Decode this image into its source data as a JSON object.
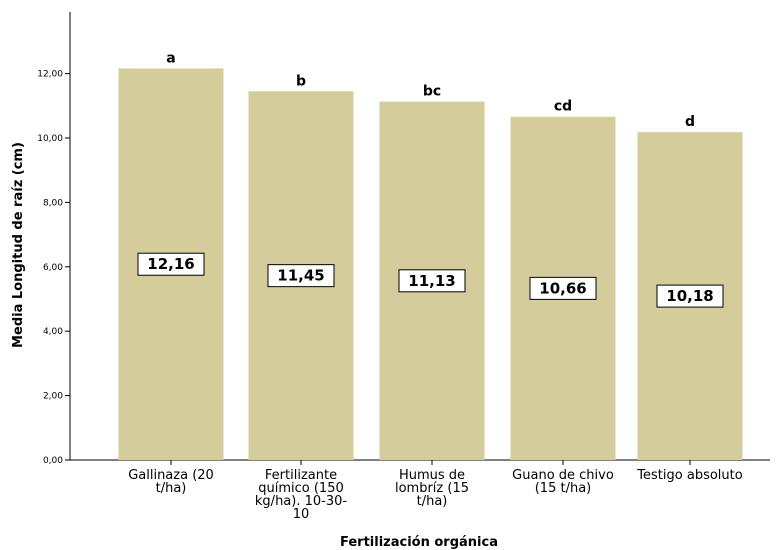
{
  "chart_data": {
    "type": "bar",
    "xlabel": "Fertilización orgánica",
    "ylabel": "Media Longitud de raíz (cm)",
    "ylim": [
      0,
      14
    ],
    "yticks": [
      "0,00",
      "2,00",
      "4,00",
      "6,00",
      "8,00",
      "10,00",
      "12,00"
    ],
    "categories": [
      [
        "Gallinaza (20",
        "t/ha)"
      ],
      [
        "Fertilizante",
        "químico (150",
        "kg/ha). 10-30-",
        "10"
      ],
      [
        "Humus de",
        "lombríz (15",
        "t/ha)"
      ],
      [
        "Guano de chivo",
        "(15 t/ha)"
      ],
      [
        "Testigo absoluto"
      ]
    ],
    "values": [
      12.16,
      11.45,
      11.13,
      10.66,
      10.18
    ],
    "value_labels": [
      "12,16",
      "11,45",
      "11,13",
      "10,66",
      "10,18"
    ],
    "significance_letters": [
      "a",
      "b",
      "bc",
      "cd",
      "d"
    ],
    "bar_color": "#d4cd9b",
    "grid": false
  }
}
